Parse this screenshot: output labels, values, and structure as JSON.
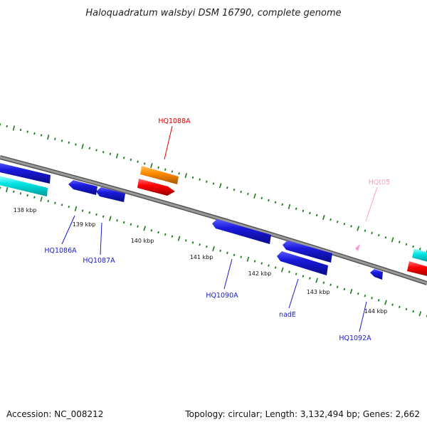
{
  "title": "Haloquadratum walsbyi DSM 16790, complete genome",
  "footer": {
    "accession": "Accession: NC_008212",
    "topology": "Topology: circular; Length: 3,132,494 bp; Genes: 2,662"
  },
  "colors": {
    "background": "#ffffff",
    "backbone": "#8c8c8c",
    "tick_major": "#1a7a1a",
    "tick_minor": "#1a7a1a",
    "cds": "#1a1acc",
    "cds_forward_highlight": "#ff0000",
    "rrna": "#ff8c00",
    "trna": "#ff99cc",
    "cyan_feature": "#00e5e5",
    "label_blue": "#1a1acc",
    "label_red": "#dd0000",
    "label_pink": "#ff99cc"
  },
  "scale": {
    "ticks": [
      "138 kbp",
      "139 kbp",
      "140 kbp",
      "141 kbp",
      "142 kbp",
      "143 kbp",
      "144 kbp"
    ]
  },
  "labels": [
    {
      "id": "HQ1088A",
      "text": "HQ1088A",
      "color": "red"
    },
    {
      "id": "HQt05",
      "text": "HQt05",
      "color": "pink"
    },
    {
      "id": "HQ1086A",
      "text": "HQ1086A",
      "color": "blue"
    },
    {
      "id": "HQ1087A",
      "text": "HQ1087A",
      "color": "blue"
    },
    {
      "id": "HQ1090A",
      "text": "HQ1090A",
      "color": "blue"
    },
    {
      "id": "nadE",
      "text": "nadE",
      "color": "blue"
    },
    {
      "id": "HQ1092A",
      "text": "HQ1092A",
      "color": "blue"
    }
  ]
}
